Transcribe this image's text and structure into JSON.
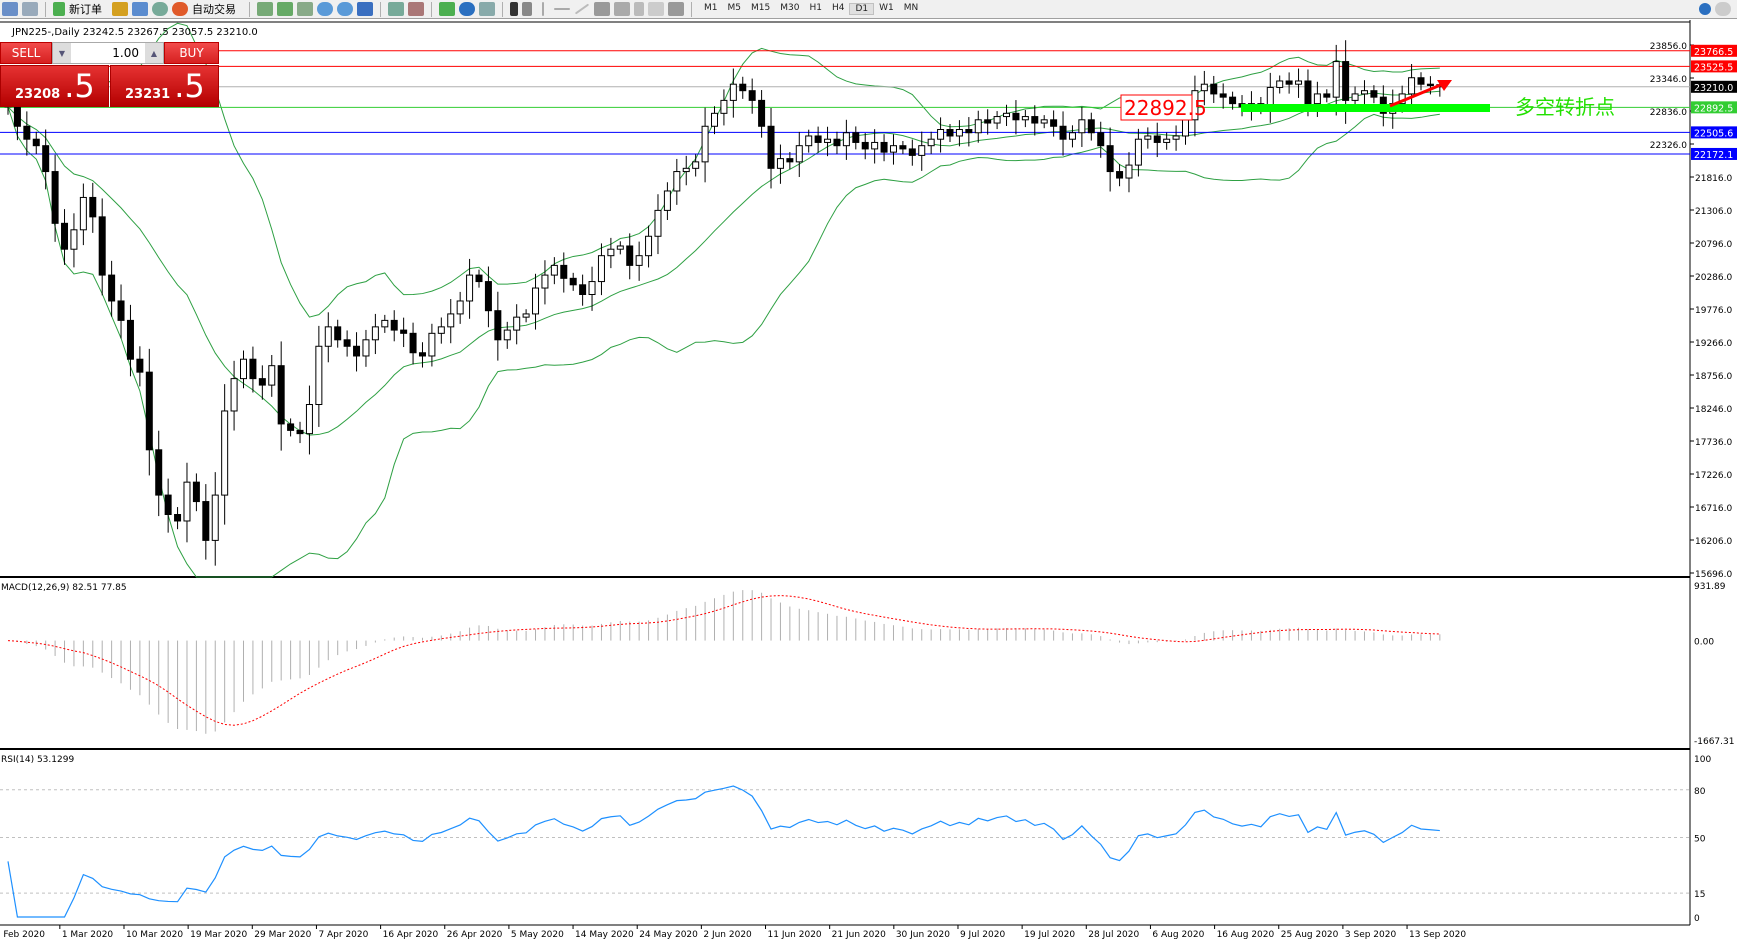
{
  "toolbar": {
    "new_order": "新订单",
    "auto_trading": "自动交易",
    "periods": [
      "M1",
      "M5",
      "M15",
      "M30",
      "H1",
      "H4",
      "D1",
      "W1",
      "MN"
    ],
    "active_period": "D1"
  },
  "header": {
    "symbol_line": "JPN225-,Daily  23242.5 23267.5 23057.5 23210.0"
  },
  "one_click": {
    "sell_label": "SELL",
    "buy_label": "BUY",
    "lot": "1.00",
    "sell_main": "23208",
    "sell_frac": ".5",
    "buy_main": "23231",
    "buy_frac": ".5"
  },
  "colors": {
    "up": "#ffffff",
    "down": "#000000",
    "bands": "#2ea043",
    "macd_signal": "#ff0000",
    "macd_hist": "#b0b0b0",
    "rsi": "#1e90ff",
    "resistance": "#ff0000",
    "support": "#0000ff",
    "pivot": "#32cd32"
  },
  "annotations": {
    "pivot_box": "22892.5",
    "pivot_text": "多空转折点"
  },
  "chart_data": [
    {
      "type": "candlestick",
      "title": "JPN225-,Daily",
      "ylim": [
        15696,
        24000
      ],
      "y_ticks": [
        "23856.0",
        "23346.0",
        "22836.0",
        "22326.0",
        "21816.0",
        "21306.0",
        "20796.0",
        "20286.0",
        "19776.0",
        "19266.0",
        "18756.0",
        "18246.0",
        "17736.0",
        "17226.0",
        "16716.0",
        "16206.0",
        "15696.0"
      ],
      "x_ticks": [
        "20 Feb 2020",
        "1 Mar 2020",
        "10 Mar 2020",
        "19 Mar 2020",
        "29 Mar 2020",
        "7 Apr 2020",
        "16 Apr 2020",
        "26 Apr 2020",
        "5 May 2020",
        "14 May 2020",
        "24 May 2020",
        "2 Jun 2020",
        "11 Jun 2020",
        "21 Jun 2020",
        "30 Jun 2020",
        "9 Jul 2020",
        "19 Jul 2020",
        "28 Jul 2020",
        "6 Aug 2020",
        "16 Aug 2020",
        "25 Aug 2020",
        "3 Sep 2020",
        "13 Sep 2020"
      ],
      "last_ohlc": {
        "open": 23242.5,
        "high": 23267.5,
        "low": 23057.5,
        "close": 23210.0
      },
      "close": [
        22900,
        22600,
        22400,
        22300,
        21900,
        21100,
        20700,
        21000,
        21500,
        21200,
        20300,
        19900,
        19600,
        19000,
        18800,
        17600,
        16900,
        16600,
        16500,
        17100,
        16800,
        16200,
        16900,
        18200,
        18700,
        19000,
        18700,
        18600,
        18900,
        18000,
        17900,
        17850,
        18300,
        19200,
        19500,
        19300,
        19200,
        19050,
        19300,
        19500,
        19600,
        19450,
        19400,
        19100,
        19050,
        19400,
        19500,
        19700,
        19900,
        20300,
        20200,
        19750,
        19300,
        19450,
        19650,
        19700,
        20100,
        20300,
        20450,
        20250,
        20150,
        20000,
        20200,
        20600,
        20700,
        20750,
        20450,
        20600,
        20900,
        21300,
        21600,
        21900,
        21950,
        22050,
        22600,
        22800,
        23000,
        23250,
        23150,
        23000,
        22600,
        21950,
        22100,
        22050,
        22300,
        22450,
        22350,
        22400,
        22300,
        22500,
        22350,
        22250,
        22350,
        22200,
        22300,
        22250,
        22150,
        22300,
        22400,
        22550,
        22450,
        22550,
        22500,
        22700,
        22650,
        22750,
        22800,
        22700,
        22750,
        22650,
        22700,
        22600,
        22400,
        22500,
        22700,
        22500,
        22300,
        21900,
        21800,
        22000,
        22400,
        22450,
        22350,
        22400,
        22450,
        22700,
        23150,
        23250,
        23100,
        23050,
        22950,
        22900,
        22950,
        22900,
        23200,
        23300,
        23250,
        23300,
        22950,
        23100,
        23050,
        23600,
        23000,
        23100,
        23150,
        23050,
        22800,
        22950,
        23100,
        23350,
        23250,
        23230,
        23210
      ],
      "indicators": [
        "Bollinger Bands(20,2)"
      ],
      "levels": [
        {
          "value": "23766.5",
          "kind": "resistance"
        },
        {
          "value": "23525.5",
          "kind": "resistance"
        },
        {
          "value": "23210.0",
          "kind": "bid"
        },
        {
          "value": "22892.5",
          "kind": "pivot"
        },
        {
          "value": "22505.6",
          "kind": "support"
        },
        {
          "value": "22172.1",
          "kind": "support"
        }
      ]
    },
    {
      "type": "bar",
      "title": "MACD(12,26,9) 82.51 77.85",
      "ylim": [
        -1667.31,
        931.89
      ],
      "y_ticks": [
        "931.89",
        "0.00",
        "-1667.31"
      ]
    },
    {
      "type": "line",
      "title": "RSI(14) 53.1299",
      "ylim": [
        0,
        100
      ],
      "y_ticks": [
        "100",
        "80",
        "50",
        "15",
        "0"
      ],
      "levels": [
        80,
        50,
        15
      ]
    }
  ]
}
